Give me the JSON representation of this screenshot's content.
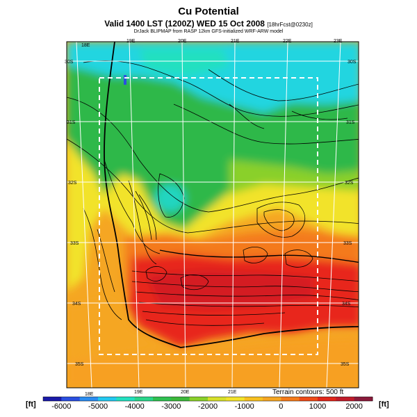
{
  "header": {
    "title": "Cu Potential",
    "subtitle_main": "Valid 1400 LST (1200Z) WED 15 Oct 2008",
    "subtitle_tag": "[18hrFcst@0230z]",
    "credit": "DrJack BLIPMAP from RASP 12km GFS-initialized WRF-ARW model"
  },
  "map": {
    "lon_labels_top": [
      "18E",
      "19E",
      "20E",
      "21E",
      "22E",
      "23E"
    ],
    "lon_labels_bottom": [
      "18E",
      "19E",
      "20E",
      "21E"
    ],
    "lat_labels_left": [
      "30S",
      "31S",
      "32S",
      "33S",
      "34S",
      "35S"
    ],
    "lat_labels_right": [
      "30S",
      "31S",
      "32S",
      "33S",
      "34S",
      "35S"
    ],
    "terrain_note": "Terrain contours: 500 ft",
    "colors": {
      "ocean_orange": "#f5a623",
      "land_red": "#e8261a",
      "green": "#2fb84a",
      "cyan": "#23d5e0",
      "yellow": "#f2e32a"
    }
  },
  "colorbar": {
    "unit_left": "[ft]",
    "unit_right": "[ft]",
    "tick_labels": [
      "-6000",
      "-5000",
      "-4000",
      "-3000",
      "-2000",
      "-1000",
      "0",
      "1000",
      "2000"
    ],
    "range": [
      -6500,
      2500
    ],
    "colors": [
      "#1a1aa8",
      "#2a4fe0",
      "#2a8cf0",
      "#23c8f0",
      "#23e0c0",
      "#2ad58a",
      "#2fc050",
      "#3cb83a",
      "#8ad02a",
      "#d6e02a",
      "#f2e32a",
      "#f7c020",
      "#f5a623",
      "#f47a1a",
      "#ee4a18",
      "#e0261a",
      "#c01c2a",
      "#8a1a3a"
    ]
  }
}
